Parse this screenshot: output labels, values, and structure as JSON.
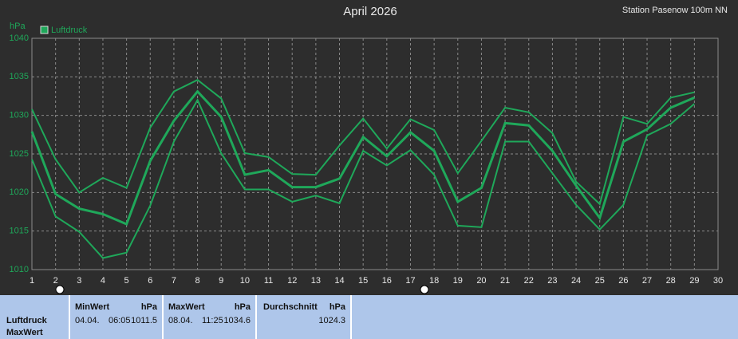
{
  "chart_data": {
    "type": "line",
    "title": "April 2026",
    "subtitle": "Station Pasenow 100m NN",
    "y_label": "hPa",
    "x": [
      1,
      2,
      3,
      4,
      5,
      6,
      7,
      8,
      9,
      10,
      11,
      12,
      13,
      14,
      15,
      16,
      17,
      18,
      19,
      20,
      21,
      22,
      23,
      24,
      25,
      26,
      27,
      28,
      29
    ],
    "series": [
      {
        "color": "#1fa85a",
        "values": [
          1030.8,
          1024.3,
          1020.0,
          1021.9,
          1020.6,
          1028.4,
          1033.1,
          1034.6,
          1032.2,
          1025.1,
          1024.6,
          1022.4,
          1022.3,
          1026.1,
          1029.6,
          1025.7,
          1029.5,
          1028.1,
          1022.5,
          1026.7,
          1031.0,
          1030.4,
          1027.7,
          1021.4,
          1018.5,
          1029.8,
          1028.9,
          1032.3,
          1033.0
        ]
      },
      {
        "name": "Luftdruck",
        "color": "#1fa85a",
        "values": [
          1027.9,
          1019.8,
          1017.9,
          1017.2,
          1015.9,
          1024.1,
          1029.3,
          1033.1,
          1029.8,
          1022.3,
          1022.9,
          1020.7,
          1020.7,
          1021.8,
          1027.2,
          1024.7,
          1027.8,
          1025.4,
          1018.8,
          1020.6,
          1029.0,
          1028.7,
          1025.4,
          1020.9,
          1016.7,
          1026.6,
          1028.2,
          1031.0,
          1032.3
        ]
      },
      {
        "color": "#1fa85a",
        "values": [
          1024.3,
          1016.9,
          1014.9,
          1011.5,
          1012.2,
          1018.3,
          1026.6,
          1032.0,
          1025.1,
          1020.4,
          1020.4,
          1018.8,
          1019.6,
          1018.6,
          1025.4,
          1023.5,
          1025.5,
          1022.3,
          1015.7,
          1015.5,
          1026.6,
          1026.6,
          1022.5,
          1018.4,
          1015.2,
          1018.4,
          1027.4,
          1028.9,
          1031.5
        ]
      }
    ],
    "xlim": [
      1,
      30
    ],
    "xticks": [
      1,
      2,
      3,
      4,
      5,
      6,
      7,
      8,
      9,
      10,
      11,
      12,
      13,
      14,
      15,
      16,
      17,
      18,
      19,
      20,
      21,
      22,
      23,
      24,
      25,
      26,
      27,
      28,
      29,
      30
    ],
    "ylim": [
      1010,
      1040
    ],
    "yticks": [
      1010,
      1015,
      1020,
      1025,
      1030,
      1035,
      1040
    ],
    "grid": true,
    "legend": "top-left"
  },
  "stats_panel": {
    "label": [
      "Luftdruck",
      "MaxWert"
    ],
    "columns": [
      {
        "title": "MinWert",
        "unit": "hPa",
        "date": "04.04.",
        "time": "06:05",
        "value": 1011.5
      },
      {
        "title": "MaxWert",
        "unit": "hPa",
        "date": "08.04.",
        "time": "11:25",
        "value": 1034.6
      },
      {
        "title": "Durchschnitt",
        "unit": "hPa",
        "value": 1024.3
      }
    ]
  }
}
